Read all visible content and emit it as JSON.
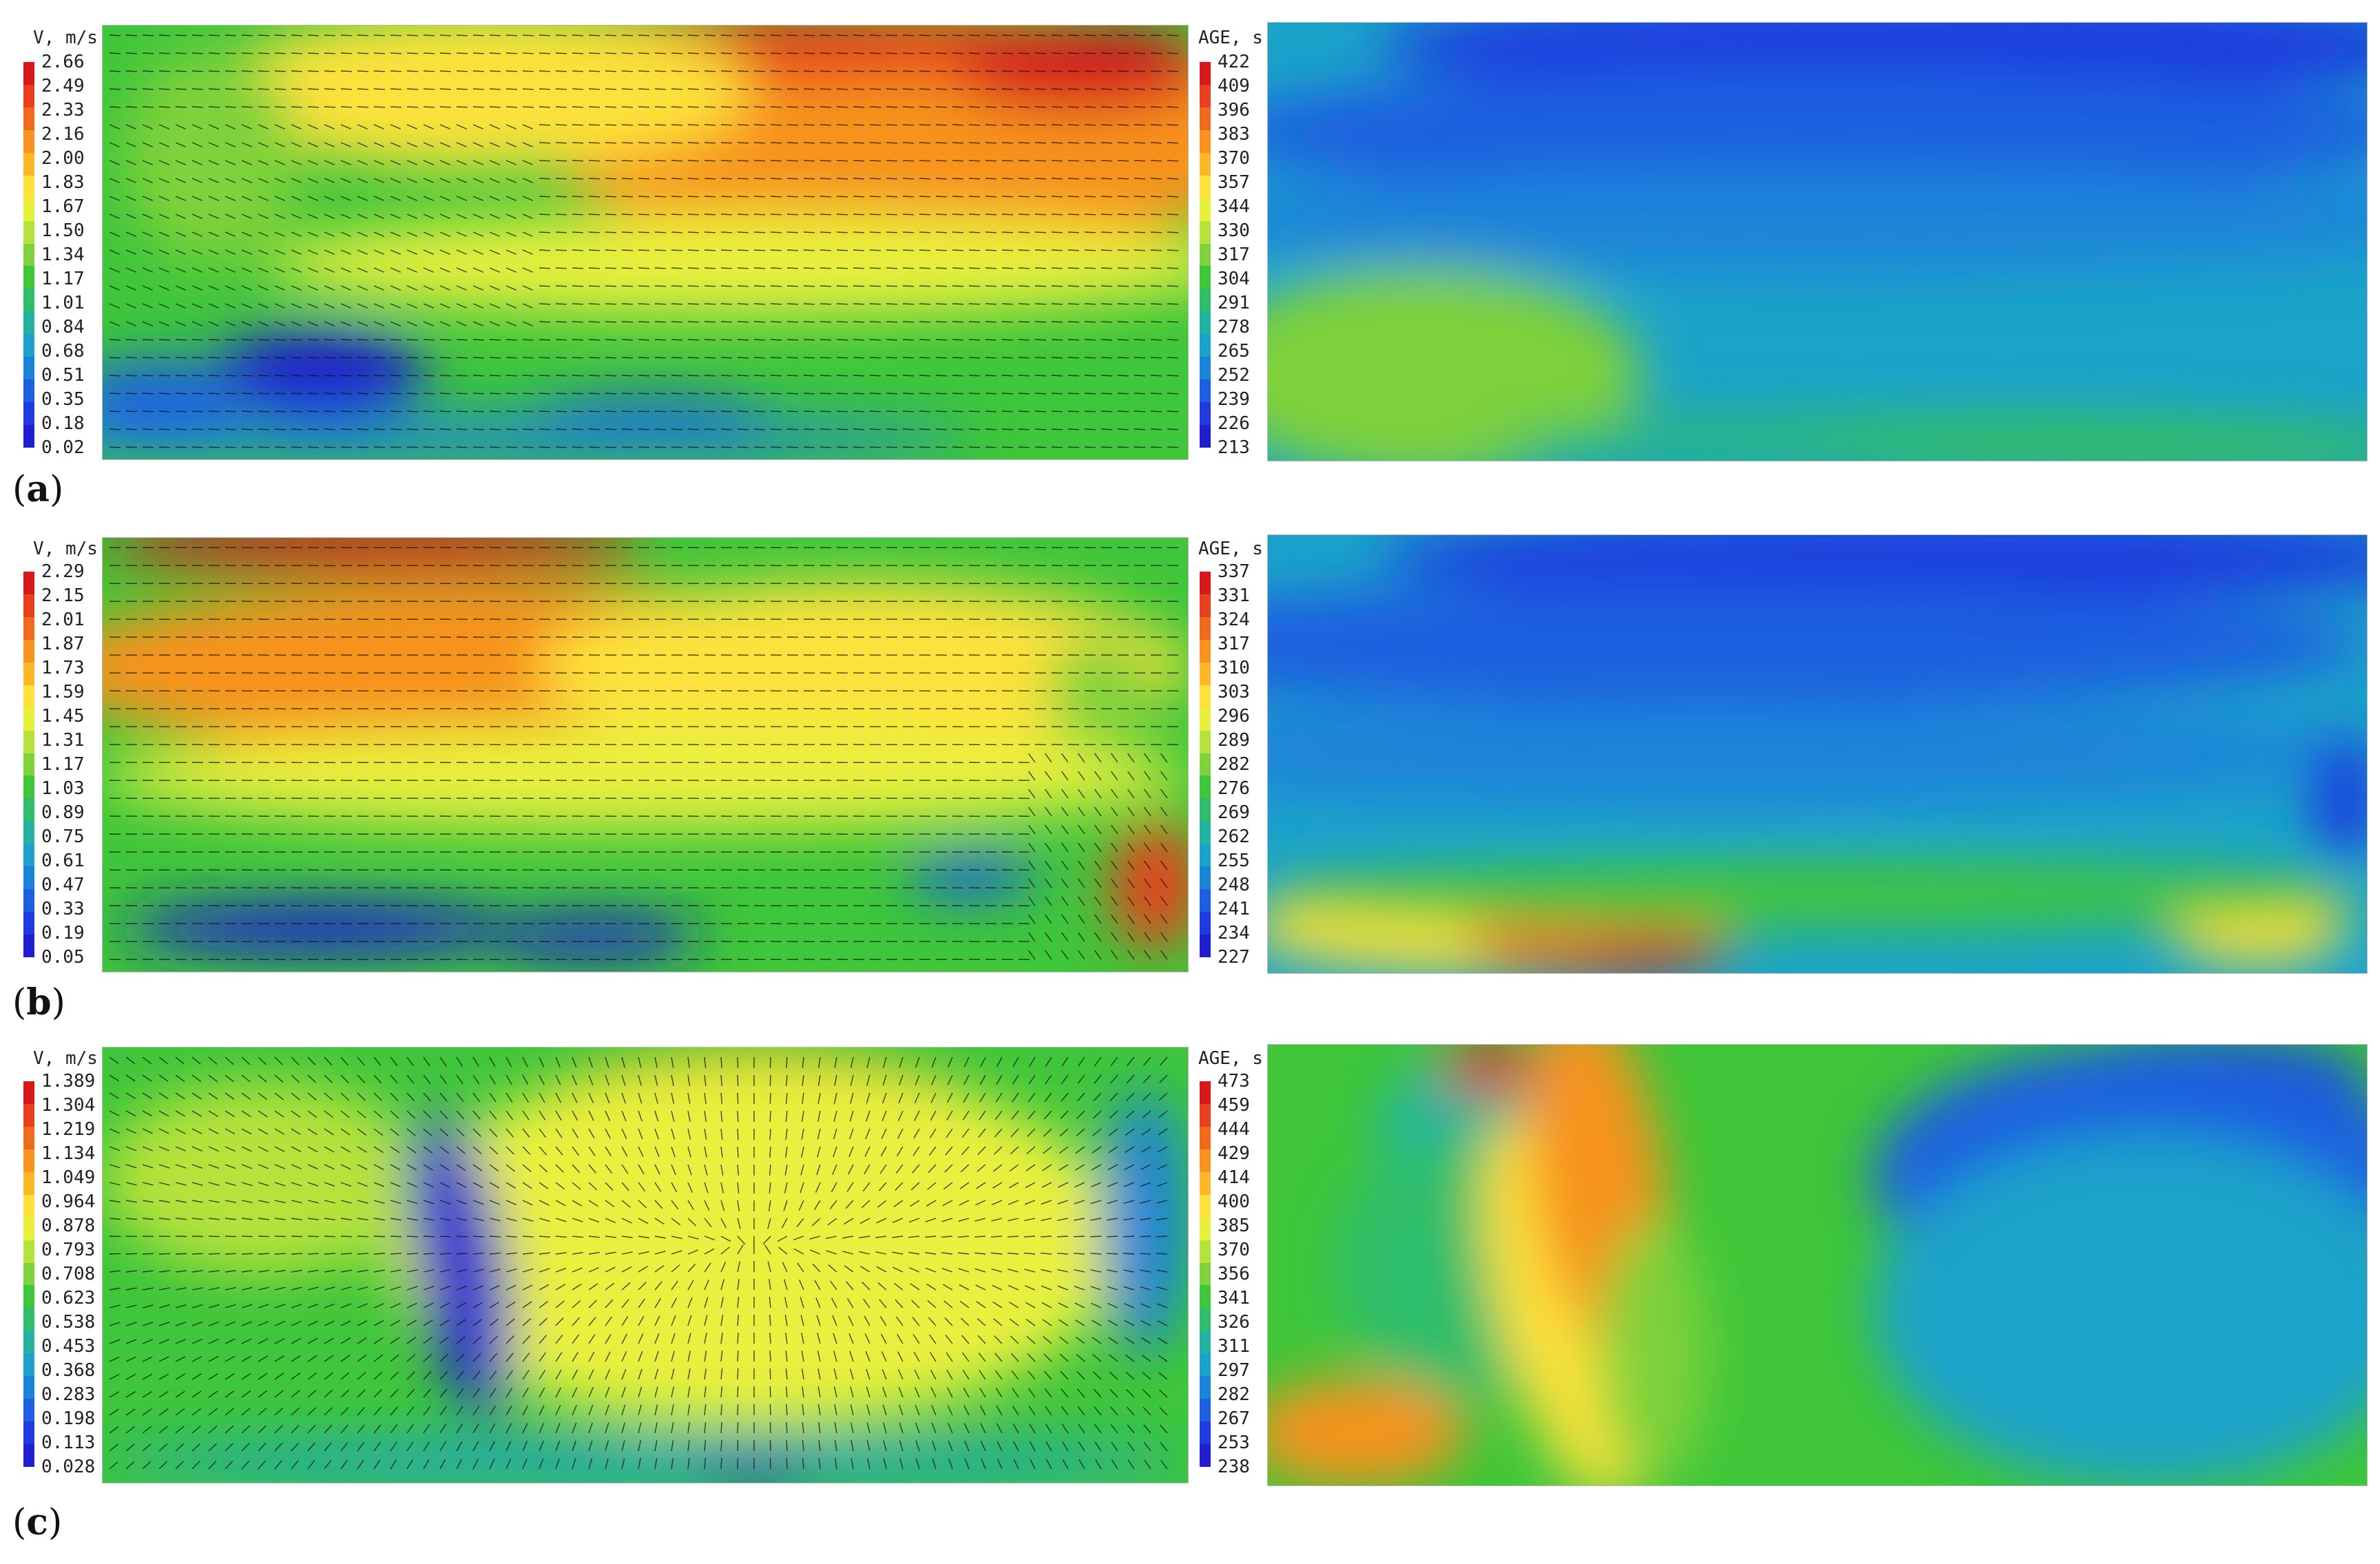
{
  "rows": [
    {
      "label_open": "(",
      "label_letter": "a",
      "label_close": ")",
      "velocity": {
        "legend_title": "V, m/s",
        "ticks": [
          "2.66",
          "2.49",
          "2.33",
          "2.16",
          "2.00",
          "1.83",
          "1.67",
          "1.50",
          "1.34",
          "1.17",
          "1.01",
          "0.84",
          "0.68",
          "0.51",
          "0.35",
          "0.18",
          "0.02"
        ]
      },
      "age": {
        "legend_title": "AGE, s",
        "ticks": [
          "422",
          "409",
          "396",
          "383",
          "370",
          "357",
          "344",
          "330",
          "317",
          "304",
          "291",
          "278",
          "265",
          "252",
          "239",
          "226",
          "213"
        ]
      }
    },
    {
      "label_open": "(",
      "label_letter": "b",
      "label_close": ")",
      "velocity": {
        "legend_title": "V, m/s",
        "ticks": [
          "2.29",
          "2.15",
          "2.01",
          "1.87",
          "1.73",
          "1.59",
          "1.45",
          "1.31",
          "1.17",
          "1.03",
          "0.89",
          "0.75",
          "0.61",
          "0.47",
          "0.33",
          "0.19",
          "0.05"
        ]
      },
      "age": {
        "legend_title": "AGE, s",
        "ticks": [
          "337",
          "331",
          "324",
          "317",
          "310",
          "303",
          "296",
          "289",
          "282",
          "276",
          "269",
          "262",
          "255",
          "248",
          "241",
          "234",
          "227"
        ]
      }
    },
    {
      "label_open": "(",
      "label_letter": "c",
      "label_close": ")",
      "velocity": {
        "legend_title": "V, m/s",
        "ticks": [
          "1.389",
          "1.304",
          "1.219",
          "1.134",
          "1.049",
          "0.964",
          "0.878",
          "0.793",
          "0.708",
          "0.623",
          "0.538",
          "0.453",
          "0.368",
          "0.283",
          "0.198",
          "0.113",
          "0.028"
        ]
      },
      "age": {
        "legend_title": "AGE, s",
        "ticks": [
          "473",
          "459",
          "444",
          "429",
          "414",
          "400",
          "385",
          "370",
          "356",
          "341",
          "326",
          "311",
          "297",
          "282",
          "267",
          "253",
          "238"
        ]
      }
    }
  ],
  "colormap": [
    "#d7191c",
    "#e8401f",
    "#f06a1e",
    "#f7931e",
    "#fbb728",
    "#fde23a",
    "#e9f03c",
    "#b5e23b",
    "#7fd23b",
    "#3fc63a",
    "#2ebd6a",
    "#22b4a1",
    "#1ba3c9",
    "#1a84d9",
    "#1d5fe0",
    "#1f3adf",
    "#1f1fd0"
  ],
  "chart_data": [
    {
      "type": "heatmap",
      "panel": "a-velocity",
      "title": "",
      "colorbar_label": "V, m/s",
      "range": [
        0.02,
        2.66
      ]
    },
    {
      "type": "heatmap",
      "panel": "a-age",
      "title": "",
      "colorbar_label": "AGE, s",
      "range": [
        213,
        422
      ]
    },
    {
      "type": "heatmap",
      "panel": "b-velocity",
      "title": "",
      "colorbar_label": "V, m/s",
      "range": [
        0.05,
        2.29
      ]
    },
    {
      "type": "heatmap",
      "panel": "b-age",
      "title": "",
      "colorbar_label": "AGE, s",
      "range": [
        227,
        337
      ]
    },
    {
      "type": "heatmap",
      "panel": "c-velocity",
      "title": "",
      "colorbar_label": "V, m/s",
      "range": [
        0.028,
        1.389
      ]
    },
    {
      "type": "heatmap",
      "panel": "c-age",
      "title": "",
      "colorbar_label": "AGE, s",
      "range": [
        238,
        473
      ]
    }
  ]
}
